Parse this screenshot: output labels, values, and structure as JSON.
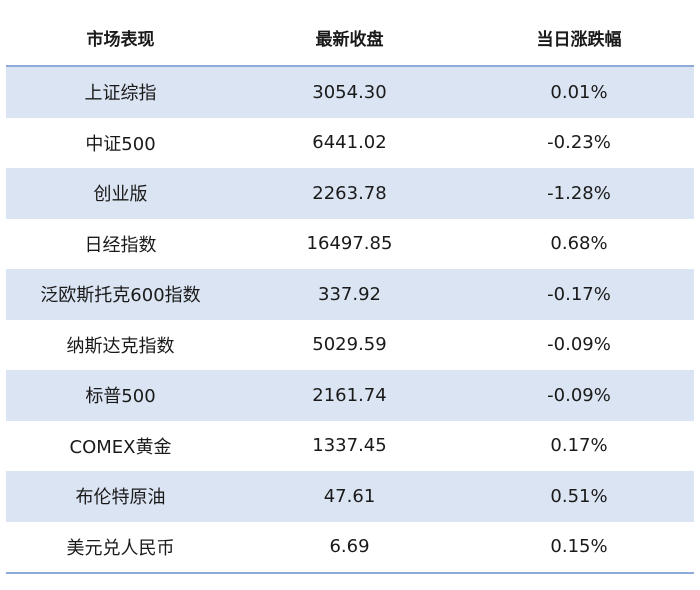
{
  "table": {
    "headers": [
      "市场表现",
      "最新收盘",
      "当日涨跌幅"
    ],
    "rows": [
      [
        "上证综指",
        "3054.30",
        "0.01%"
      ],
      [
        "中证500",
        "6441.02",
        "-0.23%"
      ],
      [
        "创业版",
        "2263.78",
        "-1.28%"
      ],
      [
        "日经指数",
        "16497.85",
        "0.68%"
      ],
      [
        "泛欧斯托克600指数",
        "337.92",
        "-0.17%"
      ],
      [
        "纳斯达克指数",
        "5029.59",
        "-0.09%"
      ],
      [
        "标普500",
        "2161.74",
        "-0.09%"
      ],
      [
        "COMEX黄金",
        "1337.45",
        "0.17%"
      ],
      [
        "布伦特原油",
        "47.61",
        "0.51%"
      ],
      [
        "美元兑人民币",
        "6.69",
        "0.15%"
      ]
    ]
  },
  "colors": {
    "stripe": "#dbe4f2",
    "rule": "#8eaad8"
  }
}
